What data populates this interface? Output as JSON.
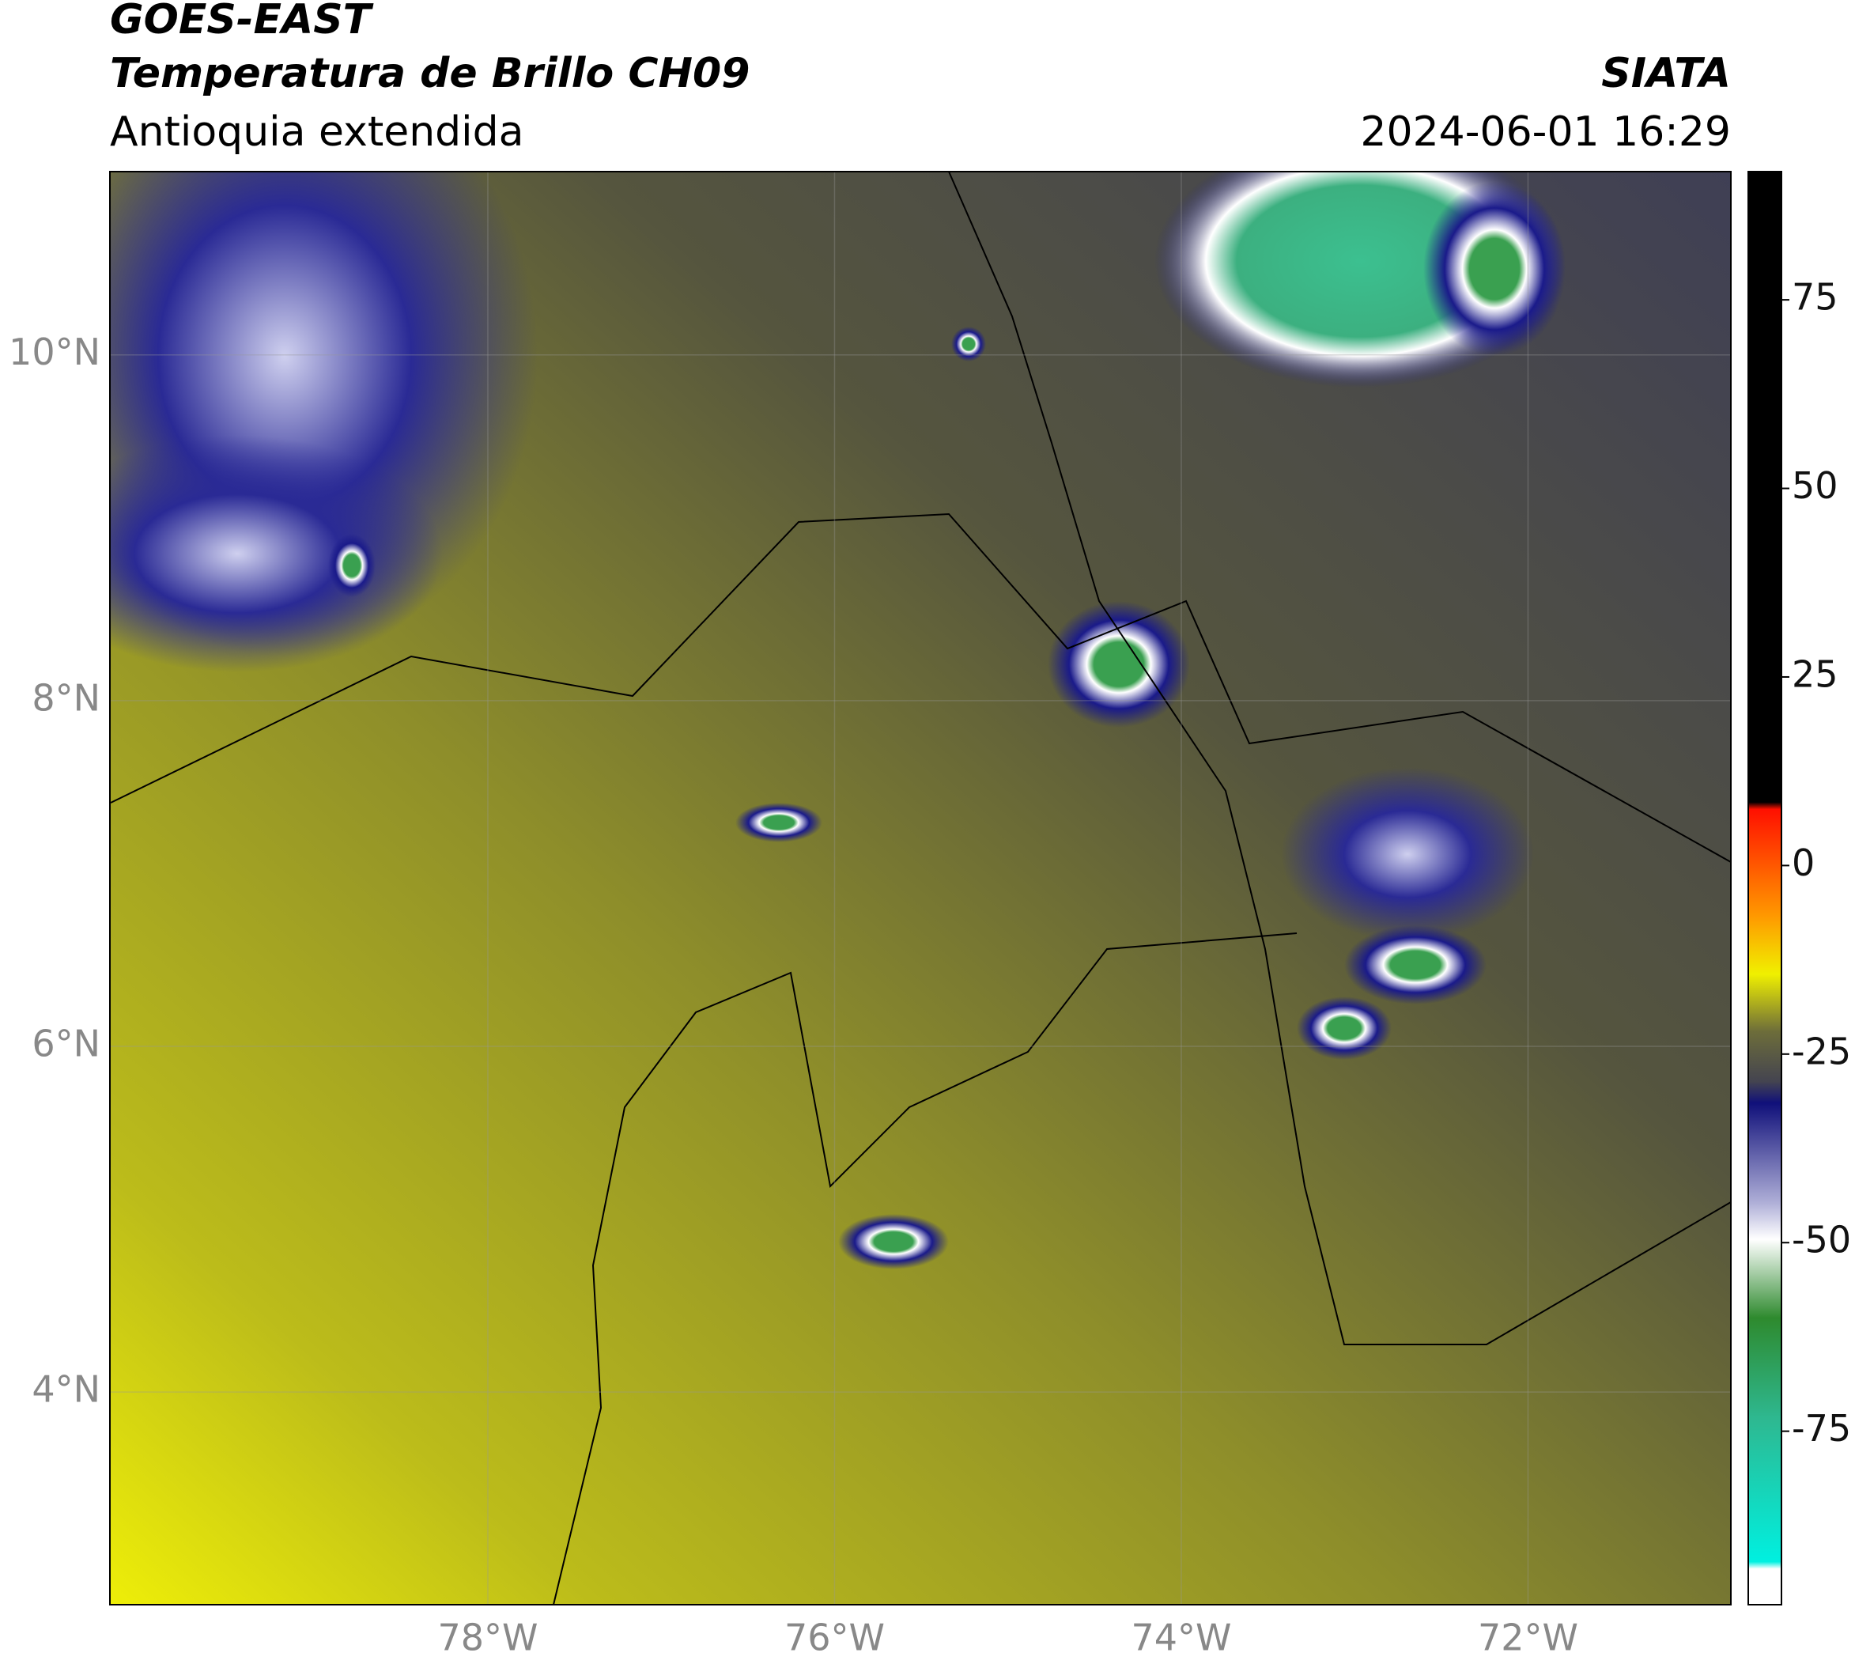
{
  "header": {
    "title": "GOES-EAST",
    "subtitle": "Temperatura de Brillo CH09",
    "region": "Antioquia extendida",
    "source": "SIATA",
    "datetime": "2024-06-01 16:29"
  },
  "map": {
    "xlim": [
      -80.18,
      -70.83
    ],
    "ylim": [
      2.77,
      11.06
    ],
    "xticks": [
      {
        "value": -78,
        "label": "78°W"
      },
      {
        "value": -76,
        "label": "76°W"
      },
      {
        "value": -74,
        "label": "74°W"
      },
      {
        "value": -72,
        "label": "72°W"
      }
    ],
    "yticks": [
      {
        "value": 4,
        "label": "4°N"
      },
      {
        "value": 6,
        "label": "6°N"
      },
      {
        "value": 8,
        "label": "8°N"
      },
      {
        "value": 10,
        "label": "10°N"
      }
    ]
  },
  "colorbar": {
    "lim": [
      -98,
      92
    ],
    "ticks": [
      -75,
      -50,
      -25,
      0,
      25,
      50,
      75
    ]
  }
}
